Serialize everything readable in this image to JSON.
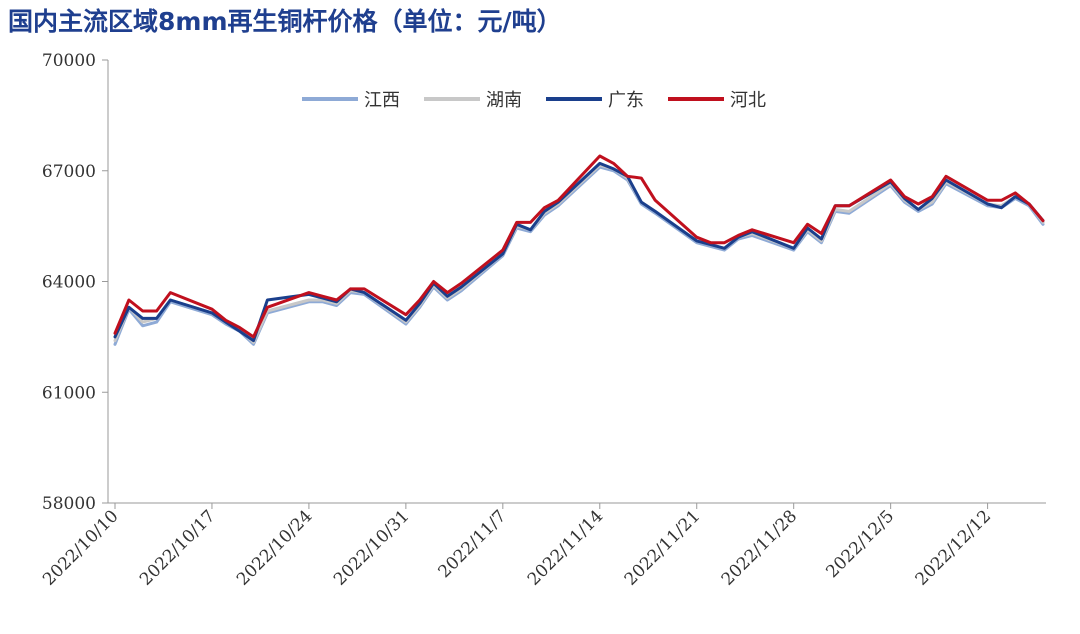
{
  "chart_data": {
    "type": "line",
    "title": "国内主流区域8mm再生铜杆价格（单位：元/吨）",
    "ylim": [
      58000,
      70000
    ],
    "yticks": [
      "58000",
      "61000",
      "64000",
      "67000",
      "70000"
    ],
    "xtick_labels": [
      "2022/10/10",
      "2022/10/17",
      "2022/10/24",
      "2022/10/31",
      "2022/11/7",
      "2022/11/14",
      "2022/11/21",
      "2022/11/28",
      "2022/12/5",
      "2022/12/12"
    ],
    "legend_position": "top-center",
    "grid": false,
    "x": [
      "2022/10/10",
      "2022/10/11",
      "2022/10/12",
      "2022/10/13",
      "2022/10/14",
      "2022/10/17",
      "2022/10/18",
      "2022/10/19",
      "2022/10/20",
      "2022/10/21",
      "2022/10/24",
      "2022/10/25",
      "2022/10/26",
      "2022/10/27",
      "2022/10/28",
      "2022/10/31",
      "2022/11/1",
      "2022/11/2",
      "2022/11/3",
      "2022/11/4",
      "2022/11/7",
      "2022/11/8",
      "2022/11/9",
      "2022/11/10",
      "2022/11/11",
      "2022/11/14",
      "2022/11/15",
      "2022/11/16",
      "2022/11/17",
      "2022/11/18",
      "2022/11/21",
      "2022/11/22",
      "2022/11/23",
      "2022/11/24",
      "2022/11/25",
      "2022/11/28",
      "2022/11/29",
      "2022/11/30",
      "2022/12/1",
      "2022/12/2",
      "2022/12/5",
      "2022/12/6",
      "2022/12/7",
      "2022/12/8",
      "2022/12/9",
      "2022/12/12",
      "2022/12/13",
      "2022/12/14",
      "2022/12/15",
      "2022/12/16"
    ],
    "series": [
      {
        "name": "江西",
        "color": "#8eaad6",
        "width": 3,
        "values": [
          62300,
          63250,
          62800,
          62900,
          63450,
          63100,
          62850,
          62650,
          62300,
          63150,
          63450,
          63450,
          63350,
          63700,
          63650,
          62850,
          63300,
          63850,
          63500,
          63750,
          64700,
          65450,
          65350,
          65800,
          66050,
          67100,
          67000,
          66750,
          66100,
          65850,
          65050,
          64950,
          64850,
          65150,
          65250,
          64850,
          65350,
          65050,
          65900,
          65850,
          66600,
          66150,
          65900,
          66100,
          66650,
          66050,
          66000,
          66250,
          66050,
          65550
        ]
      },
      {
        "name": "湖南",
        "color": "#c8c8c8",
        "width": 3,
        "values": [
          62400,
          63300,
          62900,
          63000,
          63500,
          63150,
          62900,
          62700,
          62350,
          63200,
          63500,
          63500,
          63400,
          63750,
          63700,
          62900,
          63350,
          63900,
          63550,
          63800,
          64750,
          65500,
          65400,
          65850,
          66100,
          67150,
          67050,
          66800,
          66150,
          65900,
          65100,
          65000,
          64900,
          65200,
          65300,
          64900,
          65400,
          65100,
          65950,
          65900,
          66650,
          66200,
          65950,
          66150,
          66700,
          66100,
          66050,
          66300,
          66100,
          65600
        ]
      },
      {
        "name": "广东",
        "color": "#1a3f8c",
        "width": 3,
        "values": [
          62500,
          63300,
          63000,
          63000,
          63500,
          63150,
          62900,
          62650,
          62400,
          63500,
          63650,
          63550,
          63450,
          63800,
          63700,
          62950,
          63400,
          63950,
          63600,
          63850,
          64750,
          65550,
          65400,
          65900,
          66150,
          67200,
          67050,
          66850,
          66150,
          65900,
          65100,
          65000,
          64900,
          65200,
          65350,
          64900,
          65450,
          65150,
          66050,
          66050,
          66700,
          66250,
          65950,
          66250,
          66750,
          66100,
          66000,
          66300,
          66100,
          65650
        ]
      },
      {
        "name": "河北",
        "color": "#c0101e",
        "width": 3,
        "values": [
          62600,
          63500,
          63200,
          63200,
          63700,
          63250,
          62950,
          62750,
          62500,
          63300,
          63700,
          63600,
          63500,
          63800,
          63800,
          63100,
          63500,
          64000,
          63700,
          63950,
          64850,
          65600,
          65600,
          66000,
          66200,
          67400,
          67200,
          66850,
          66800,
          66200,
          65200,
          65050,
          65050,
          65250,
          65400,
          65050,
          65550,
          65300,
          66050,
          66050,
          66750,
          66300,
          66100,
          66300,
          66850,
          66200,
          66200,
          66400,
          66100,
          65650
        ]
      }
    ]
  }
}
